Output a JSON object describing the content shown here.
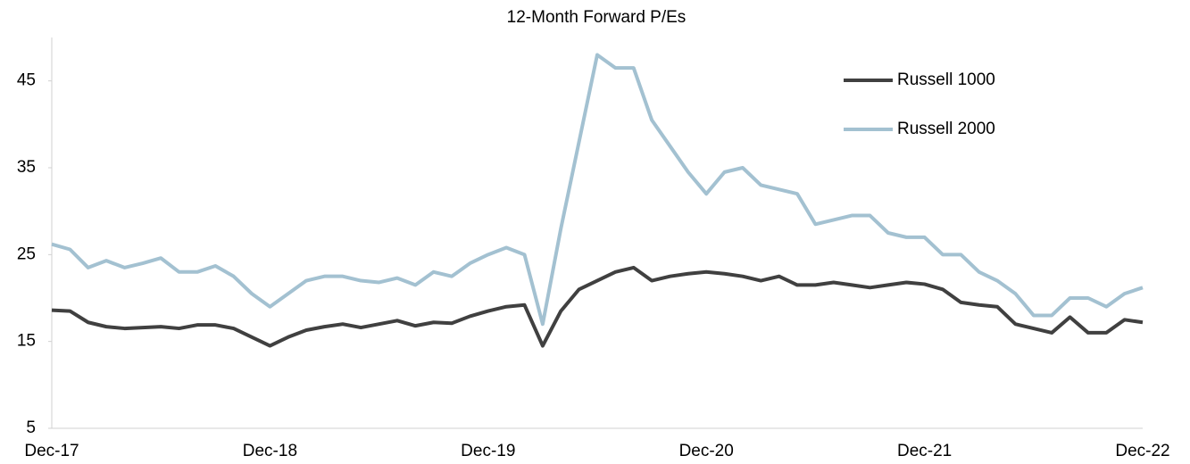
{
  "chart_data": {
    "type": "line",
    "title": "12-Month Forward P/Es",
    "categories": [
      "Dec-17",
      null,
      null,
      null,
      null,
      null,
      null,
      null,
      null,
      null,
      null,
      null,
      "Dec-18",
      null,
      null,
      null,
      null,
      null,
      null,
      null,
      null,
      null,
      null,
      null,
      "Dec-19",
      null,
      null,
      null,
      null,
      null,
      null,
      null,
      null,
      null,
      null,
      null,
      "Dec-20",
      null,
      null,
      null,
      null,
      null,
      null,
      null,
      null,
      null,
      null,
      null,
      "Dec-21",
      null,
      null,
      null,
      null,
      null,
      null,
      null,
      null,
      null,
      null,
      null,
      "Dec-22"
    ],
    "series": [
      {
        "name": "Russell 1000",
        "color": "#404040",
        "values": [
          18.6,
          18.5,
          17.2,
          16.7,
          16.5,
          16.6,
          16.7,
          16.5,
          16.9,
          16.9,
          16.5,
          15.5,
          14.5,
          15.5,
          16.3,
          16.7,
          17.0,
          16.6,
          17.0,
          17.4,
          16.8,
          17.2,
          17.1,
          17.9,
          18.5,
          19.0,
          19.2,
          14.5,
          18.5,
          21.0,
          22.0,
          23.0,
          23.5,
          22.0,
          22.5,
          22.8,
          23.0,
          22.8,
          22.5,
          22.0,
          22.5,
          21.5,
          21.5,
          21.8,
          21.5,
          21.2,
          21.5,
          21.8,
          21.6,
          21.0,
          19.5,
          19.2,
          19.0,
          17.0,
          16.5,
          16.0,
          17.8,
          16.0,
          16.0,
          17.5,
          17.2
        ]
      },
      {
        "name": "Russell 2000",
        "color": "#a3c1d1",
        "values": [
          26.2,
          25.6,
          23.5,
          24.3,
          23.5,
          24.0,
          24.6,
          23.0,
          23.0,
          23.7,
          22.5,
          20.5,
          19.0,
          20.5,
          22.0,
          22.5,
          22.5,
          22.0,
          21.8,
          22.3,
          21.5,
          23.0,
          22.5,
          24.0,
          25.0,
          25.8,
          25.0,
          17.0,
          28.0,
          38.0,
          48.0,
          46.5,
          46.5,
          40.5,
          37.5,
          34.5,
          32.0,
          34.5,
          35.0,
          33.0,
          32.5,
          32.0,
          28.5,
          29.0,
          29.5,
          29.5,
          27.5,
          27.0,
          27.0,
          25.0,
          25.0,
          23.0,
          22.0,
          20.5,
          18.0,
          18.0,
          20.0,
          20.0,
          19.0,
          20.5,
          21.2
        ]
      }
    ],
    "ylim": [
      5,
      50
    ],
    "yticks": [
      5,
      15,
      25,
      35,
      45
    ],
    "grid": false,
    "legend": "upper right"
  }
}
